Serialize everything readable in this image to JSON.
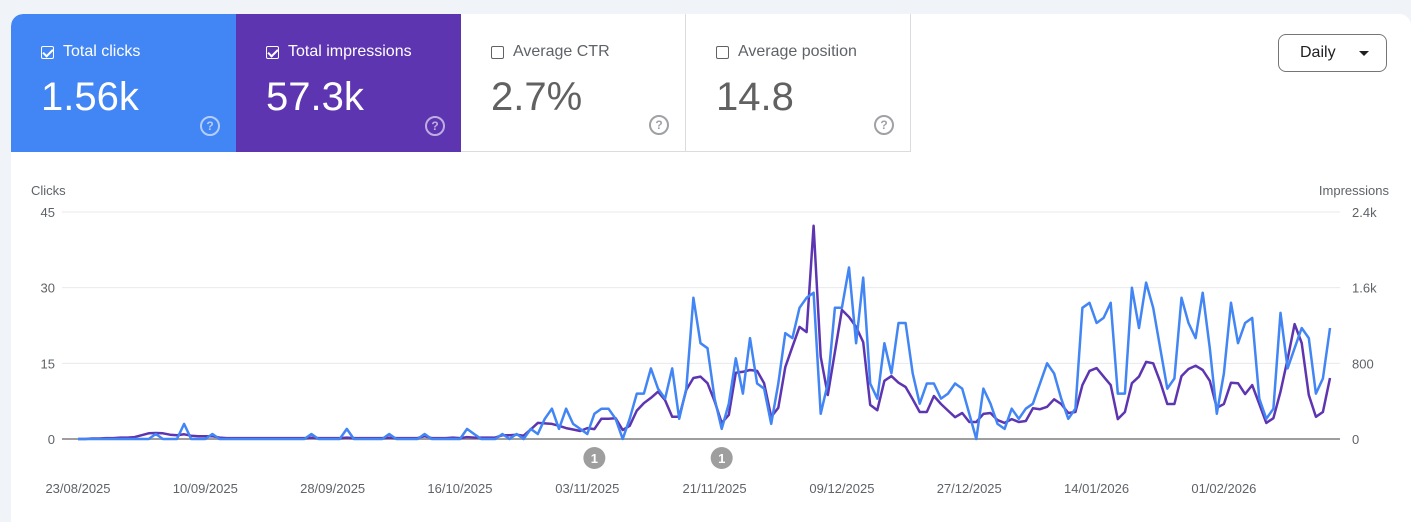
{
  "metrics": [
    {
      "label": "Total clicks",
      "value": "1.56k",
      "checked": true,
      "color": "#4285f4"
    },
    {
      "label": "Total impressions",
      "value": "57.3k",
      "checked": true,
      "color": "#5e35b1"
    },
    {
      "label": "Average CTR",
      "value": "2.7%",
      "checked": false
    },
    {
      "label": "Average position",
      "value": "14.8",
      "checked": false
    }
  ],
  "help_icon": "?",
  "granularity": {
    "selected": "Daily"
  },
  "chart_data": {
    "type": "line",
    "ylabel_left": "Clicks",
    "ylabel_right": "Impressions",
    "ylim_left": [
      0,
      45
    ],
    "ylim_right": [
      0,
      2400
    ],
    "yticks_left": [
      "0",
      "15",
      "30",
      "45"
    ],
    "yticks_right": [
      "0",
      "800",
      "1.6k",
      "2.4k"
    ],
    "grid": true,
    "xticks": [
      "23/08/2025",
      "10/09/2025",
      "28/09/2025",
      "16/10/2025",
      "03/11/2025",
      "21/11/2025",
      "09/12/2025",
      "27/12/2025",
      "14/01/2026",
      "01/02/2026"
    ],
    "annotations": [
      {
        "date": "04/11/2025",
        "label": "1"
      },
      {
        "date": "22/11/2025",
        "label": "1"
      }
    ],
    "x": [
      "23/08/2025",
      "24/08/2025",
      "25/08/2025",
      "26/08/2025",
      "27/08/2025",
      "28/08/2025",
      "29/08/2025",
      "30/08/2025",
      "31/08/2025",
      "01/09/2025",
      "02/09/2025",
      "03/09/2025",
      "04/09/2025",
      "05/09/2025",
      "06/09/2025",
      "07/09/2025",
      "08/09/2025",
      "09/09/2025",
      "10/09/2025",
      "11/09/2025",
      "12/09/2025",
      "13/09/2025",
      "14/09/2025",
      "15/09/2025",
      "16/09/2025",
      "17/09/2025",
      "18/09/2025",
      "19/09/2025",
      "20/09/2025",
      "21/09/2025",
      "22/09/2025",
      "23/09/2025",
      "24/09/2025",
      "25/09/2025",
      "26/09/2025",
      "27/09/2025",
      "28/09/2025",
      "29/09/2025",
      "30/09/2025",
      "01/10/2025",
      "02/10/2025",
      "03/10/2025",
      "04/10/2025",
      "05/10/2025",
      "06/10/2025",
      "07/10/2025",
      "08/10/2025",
      "09/10/2025",
      "10/10/2025",
      "11/10/2025",
      "12/10/2025",
      "13/10/2025",
      "14/10/2025",
      "15/10/2025",
      "16/10/2025",
      "17/10/2025",
      "18/10/2025",
      "19/10/2025",
      "20/10/2025",
      "21/10/2025",
      "22/10/2025",
      "23/10/2025",
      "24/10/2025",
      "25/10/2025",
      "26/10/2025",
      "27/10/2025",
      "28/10/2025",
      "29/10/2025",
      "30/10/2025",
      "31/10/2025",
      "01/11/2025",
      "02/11/2025",
      "03/11/2025",
      "04/11/2025",
      "05/11/2025",
      "06/11/2025",
      "07/11/2025",
      "08/11/2025",
      "09/11/2025",
      "10/11/2025",
      "11/11/2025",
      "12/11/2025",
      "13/11/2025",
      "14/11/2025",
      "15/11/2025",
      "16/11/2025",
      "17/11/2025",
      "18/11/2025",
      "19/11/2025",
      "20/11/2025",
      "21/11/2025",
      "22/11/2025",
      "23/11/2025",
      "24/11/2025",
      "25/11/2025",
      "26/11/2025",
      "27/11/2025",
      "28/11/2025",
      "29/11/2025",
      "30/11/2025",
      "01/12/2025",
      "02/12/2025",
      "03/12/2025",
      "04/12/2025",
      "05/12/2025",
      "06/12/2025",
      "07/12/2025",
      "08/12/2025",
      "09/12/2025",
      "10/12/2025",
      "11/12/2025",
      "12/12/2025",
      "13/12/2025",
      "14/12/2025",
      "15/12/2025",
      "16/12/2025",
      "17/12/2025",
      "18/12/2025",
      "19/12/2025",
      "20/12/2025",
      "21/12/2025",
      "22/12/2025",
      "23/12/2025",
      "24/12/2025",
      "25/12/2025",
      "26/12/2025",
      "27/12/2025",
      "28/12/2025",
      "29/12/2025",
      "30/12/2025",
      "31/12/2025",
      "01/01/2026",
      "02/01/2026",
      "03/01/2026",
      "04/01/2026",
      "05/01/2026",
      "06/01/2026",
      "07/01/2026",
      "08/01/2026",
      "09/01/2026",
      "10/01/2026",
      "11/01/2026",
      "12/01/2026",
      "13/01/2026",
      "14/01/2026",
      "15/01/2026",
      "16/01/2026",
      "17/01/2026",
      "18/01/2026",
      "19/01/2026",
      "20/01/2026",
      "21/01/2026",
      "22/01/2026",
      "23/01/2026",
      "24/01/2026",
      "25/01/2026",
      "26/01/2026",
      "27/01/2026",
      "28/01/2026",
      "29/01/2026",
      "30/01/2026",
      "31/01/2026",
      "01/02/2026",
      "02/02/2026",
      "03/02/2026",
      "04/02/2026",
      "05/02/2026",
      "06/02/2026",
      "07/02/2026",
      "08/02/2026",
      "09/02/2026",
      "10/02/2026",
      "11/02/2026",
      "12/02/2026",
      "13/02/2026",
      "14/02/2026",
      "15/02/2026",
      "16/02/2026"
    ],
    "series": [
      {
        "name": "Clicks",
        "axis": "left",
        "color": "#4285f4",
        "values": [
          0,
          0,
          0,
          0,
          0,
          0,
          0,
          0,
          0,
          0,
          0,
          1,
          0,
          0,
          0,
          3,
          0,
          0,
          0,
          1,
          0,
          0,
          0,
          0,
          0,
          0,
          0,
          0,
          0,
          0,
          0,
          0,
          0,
          1,
          0,
          0,
          0,
          0,
          2,
          0,
          0,
          0,
          0,
          0,
          1,
          0,
          0,
          0,
          0,
          1,
          0,
          0,
          0,
          0,
          0,
          2,
          1,
          0,
          0,
          0,
          1,
          0,
          1,
          0,
          2,
          1,
          4,
          6,
          2,
          6,
          3,
          2,
          1,
          5,
          6,
          6,
          4,
          0,
          4,
          9,
          9,
          14,
          10,
          8,
          14,
          4,
          10,
          28,
          19,
          18,
          8,
          2,
          7,
          16,
          9,
          20,
          11,
          10,
          3,
          11,
          21,
          20,
          26,
          28,
          29,
          5,
          11,
          26,
          26,
          34,
          19,
          32,
          11,
          8,
          19,
          13,
          23,
          23,
          13,
          7,
          11,
          11,
          8,
          9,
          11,
          10,
          5,
          0,
          10,
          7,
          3,
          2,
          6,
          4,
          6,
          7,
          11,
          15,
          13,
          8,
          4,
          6,
          26,
          27,
          23,
          24,
          27,
          9,
          9,
          30,
          22,
          31,
          26,
          18,
          10,
          12,
          28,
          23,
          20,
          29,
          18,
          5,
          13,
          27,
          19,
          23,
          24,
          8,
          4,
          6,
          25,
          14,
          18,
          22,
          20,
          9,
          12,
          22
        ]
      },
      {
        "name": "Impressions",
        "axis": "right",
        "color": "#5e35b1",
        "values": [
          0,
          0,
          5,
          5,
          10,
          10,
          15,
          15,
          20,
          40,
          60,
          63,
          60,
          45,
          40,
          50,
          35,
          30,
          30,
          30,
          15,
          10,
          10,
          10,
          10,
          10,
          10,
          10,
          10,
          10,
          10,
          10,
          10,
          15,
          10,
          10,
          10,
          10,
          15,
          10,
          10,
          10,
          10,
          10,
          15,
          10,
          10,
          10,
          10,
          30,
          10,
          10,
          10,
          15,
          10,
          20,
          15,
          15,
          15,
          15,
          40,
          40,
          45,
          35,
          100,
          170,
          165,
          160,
          140,
          115,
          100,
          85,
          115,
          105,
          215,
          215,
          220,
          95,
          140,
          300,
          380,
          435,
          500,
          410,
          235,
          235,
          520,
          645,
          660,
          590,
          400,
          170,
          255,
          700,
          710,
          730,
          720,
          590,
          235,
          330,
          760,
          975,
          1185,
          1130,
          2255,
          870,
          465,
          920,
          1365,
          1290,
          1185,
          1025,
          360,
          305,
          615,
          665,
          595,
          550,
          420,
          285,
          285,
          455,
          370,
          300,
          230,
          275,
          180,
          180,
          265,
          275,
          200,
          170,
          210,
          180,
          190,
          325,
          315,
          340,
          420,
          370,
          275,
          285,
          570,
          720,
          750,
          660,
          570,
          210,
          285,
          590,
          660,
          815,
          800,
          605,
          370,
          370,
          665,
          740,
          775,
          730,
          615,
          330,
          370,
          595,
          590,
          475,
          570,
          370,
          170,
          220,
          500,
          845,
          1215,
          1015,
          465,
          235,
          285,
          645
        ]
      }
    ]
  }
}
